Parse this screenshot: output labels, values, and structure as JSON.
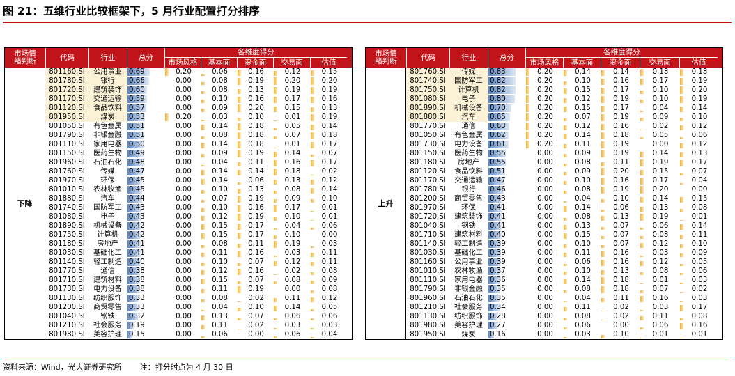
{
  "title": "图 21：五维行业比较框架下，5 月行业配置打分排序",
  "footer": {
    "source": "资料来源：Wind，光大证券研究所",
    "note": "注：打分时点为 4 月 30 日"
  },
  "headers": {
    "trend": "市场情绪判断",
    "code": "代码",
    "industry": "行业",
    "total": "总分",
    "dim_title": "各维度得分",
    "dims": [
      "市场风格",
      "基本面",
      "资金面",
      "交易面",
      "估值"
    ]
  },
  "colors": {
    "header_bg": "#c0141a",
    "highlight": "#fbf1d6",
    "bar_blue": "#5b86c3",
    "bar_gold": "#f0b233"
  },
  "panels": [
    {
      "trend": "下降",
      "rows": [
        {
          "code": "801160.SI",
          "ind": "公用事业",
          "total": "0.69",
          "d": [
            "0.20",
            "0.06",
            "0.16",
            "0.12",
            "0.15"
          ],
          "hl": true
        },
        {
          "code": "801780.SI",
          "ind": "银行",
          "total": "0.66",
          "d": [
            "0.00",
            "0.08",
            "0.19",
            "0.20",
            "0.20"
          ],
          "hl": true
        },
        {
          "code": "801720.SI",
          "ind": "建筑装饰",
          "total": "0.60",
          "d": [
            "0.00",
            "0.08",
            "0.13",
            "0.19",
            "0.19"
          ],
          "hl": true
        },
        {
          "code": "801170.SI",
          "ind": "交通运输",
          "total": "0.59",
          "d": [
            "0.00",
            "0.10",
            "0.16",
            "0.17",
            "0.16"
          ],
          "hl": true
        },
        {
          "code": "801120.SI",
          "ind": "食品饮料",
          "total": "0.57",
          "d": [
            "0.00",
            "0.09",
            "0.20",
            "0.15",
            "0.13"
          ],
          "hl": true
        },
        {
          "code": "801950.SI",
          "ind": "煤炭",
          "total": "0.53",
          "d": [
            "0.20",
            "0.03",
            "0.10",
            "0.01",
            "0.19"
          ],
          "hl": true
        },
        {
          "code": "801050.SI",
          "ind": "有色金属",
          "total": "0.51",
          "d": [
            "0.00",
            "0.14",
            "0.18",
            "0.05",
            "0.14"
          ],
          "hl": false
        },
        {
          "code": "801790.SI",
          "ind": "非银金融",
          "total": "0.51",
          "d": [
            "0.00",
            "0.08",
            "0.18",
            "0.07",
            "0.18"
          ],
          "hl": false
        },
        {
          "code": "801110.SI",
          "ind": "家用电器",
          "total": "0.50",
          "d": [
            "0.00",
            "0.14",
            "0.18",
            "0.01",
            "0.17"
          ],
          "hl": false
        },
        {
          "code": "801150.SI",
          "ind": "医药生物",
          "total": "0.49",
          "d": [
            "0.00",
            "0.09",
            "0.19",
            "0.14",
            "0.07"
          ],
          "hl": false
        },
        {
          "code": "801960.SI",
          "ind": "石油石化",
          "total": "0.48",
          "d": [
            "0.00",
            "0.04",
            "0.11",
            "0.16",
            "0.17"
          ],
          "hl": false
        },
        {
          "code": "801760.SI",
          "ind": "传媒",
          "total": "0.47",
          "d": [
            "0.00",
            "0.14",
            "0.14",
            "0.18",
            "0.02"
          ],
          "hl": false
        },
        {
          "code": "801970.SI",
          "ind": "环保",
          "total": "0.45",
          "d": [
            "0.00",
            "0.14",
            "0.06",
            "0.13",
            "0.12"
          ],
          "hl": false
        },
        {
          "code": "801010.SI",
          "ind": "农林牧渔",
          "total": "0.45",
          "d": [
            "0.00",
            "0.10",
            "0.13",
            "0.08",
            "0.14"
          ],
          "hl": false
        },
        {
          "code": "801880.SI",
          "ind": "汽车",
          "total": "0.44",
          "d": [
            "0.00",
            "0.07",
            "0.19",
            "0.09",
            "0.10"
          ],
          "hl": false
        },
        {
          "code": "801740.SI",
          "ind": "国防军工",
          "total": "0.43",
          "d": [
            "0.00",
            "0.10",
            "0.16",
            "0.17",
            "0.01"
          ],
          "hl": false
        },
        {
          "code": "801080.SI",
          "ind": "电子",
          "total": "0.43",
          "d": [
            "0.00",
            "0.12",
            "0.19",
            "0.10",
            "0.01"
          ],
          "hl": false
        },
        {
          "code": "801890.SI",
          "ind": "机械设备",
          "total": "0.42",
          "d": [
            "0.00",
            "0.15",
            "0.17",
            "0.04",
            "0.06"
          ],
          "hl": false
        },
        {
          "code": "801750.SI",
          "ind": "计算机",
          "total": "0.42",
          "d": [
            "0.00",
            "0.15",
            "0.17",
            "0.10",
            "0.00"
          ],
          "hl": false
        },
        {
          "code": "801180.SI",
          "ind": "房地产",
          "total": "0.41",
          "d": [
            "0.00",
            "0.08",
            "0.11",
            "0.19",
            "0.03"
          ],
          "hl": false
        },
        {
          "code": "801030.SI",
          "ind": "基础化工",
          "total": "0.41",
          "d": [
            "0.00",
            "0.11",
            "0.16",
            "0.03",
            "0.11"
          ],
          "hl": false
        },
        {
          "code": "801140.SI",
          "ind": "轻工制造",
          "total": "0.40",
          "d": [
            "0.00",
            "0.10",
            "0.07",
            "0.12",
            "0.11"
          ],
          "hl": false
        },
        {
          "code": "801770.SI",
          "ind": "通信",
          "total": "0.38",
          "d": [
            "0.00",
            "0.12",
            "0.16",
            "0.02",
            "0.08"
          ],
          "hl": false
        },
        {
          "code": "801710.SI",
          "ind": "建筑材料",
          "total": "0.38",
          "d": [
            "0.00",
            "0.15",
            "0.07",
            "0.08",
            "0.09"
          ],
          "hl": false
        },
        {
          "code": "801730.SI",
          "ind": "电力设备",
          "total": "0.38",
          "d": [
            "0.00",
            "0.11",
            "0.19",
            "0.00",
            "0.08"
          ],
          "hl": false
        },
        {
          "code": "801130.SI",
          "ind": "纺织服饰",
          "total": "0.33",
          "d": [
            "0.00",
            "0.08",
            "0.02",
            "0.11",
            "0.12"
          ],
          "hl": false
        },
        {
          "code": "801200.SI",
          "ind": "商贸零售",
          "total": "0.33",
          "d": [
            "0.00",
            "0.04",
            "0.10",
            "0.14",
            "0.05"
          ],
          "hl": false
        },
        {
          "code": "801040.SI",
          "ind": "钢铁",
          "total": "0.32",
          "d": [
            "0.00",
            "0.13",
            "0.07",
            "0.06",
            "0.06"
          ],
          "hl": false
        },
        {
          "code": "801210.SI",
          "ind": "社会服务",
          "total": "0.19",
          "d": [
            "0.00",
            "0.11",
            "0.02",
            "0.03",
            "0.03"
          ],
          "hl": false
        },
        {
          "code": "801980.SI",
          "ind": "美容护理",
          "total": "0.15",
          "d": [
            "0.00",
            "0.06",
            "0.00",
            "0.06",
            "0.04"
          ],
          "hl": false
        }
      ]
    },
    {
      "trend": "上升",
      "rows": [
        {
          "code": "801760.SI",
          "ind": "传媒",
          "total": "0.83",
          "d": [
            "0.20",
            "0.14",
            "0.14",
            "0.18",
            "0.18"
          ],
          "hl": true
        },
        {
          "code": "801740.SI",
          "ind": "国防军工",
          "total": "0.82",
          "d": [
            "0.20",
            "0.10",
            "0.16",
            "0.17",
            "0.19"
          ],
          "hl": true
        },
        {
          "code": "801750.SI",
          "ind": "计算机",
          "total": "0.82",
          "d": [
            "0.20",
            "0.15",
            "0.17",
            "0.10",
            "0.20"
          ],
          "hl": true
        },
        {
          "code": "801080.SI",
          "ind": "电子",
          "total": "0.80",
          "d": [
            "0.20",
            "0.12",
            "0.19",
            "0.10",
            "0.19"
          ],
          "hl": true
        },
        {
          "code": "801890.SI",
          "ind": "机械设备",
          "total": "0.70",
          "d": [
            "0.20",
            "0.15",
            "0.17",
            "0.04",
            "0.14"
          ],
          "hl": true
        },
        {
          "code": "801880.SI",
          "ind": "汽车",
          "total": "0.65",
          "d": [
            "0.20",
            "0.07",
            "0.19",
            "0.09",
            "0.10"
          ],
          "hl": true
        },
        {
          "code": "801770.SI",
          "ind": "通信",
          "total": "0.63",
          "d": [
            "0.20",
            "0.12",
            "0.16",
            "0.02",
            "0.12"
          ],
          "hl": false
        },
        {
          "code": "801050.SI",
          "ind": "有色金属",
          "total": "0.62",
          "d": [
            "0.20",
            "0.14",
            "0.18",
            "0.05",
            "0.06"
          ],
          "hl": false
        },
        {
          "code": "801730.SI",
          "ind": "电力设备",
          "total": "0.61",
          "d": [
            "0.20",
            "0.11",
            "0.19",
            "0.00",
            "0.12"
          ],
          "hl": false
        },
        {
          "code": "801150.SI",
          "ind": "医药生物",
          "total": "0.55",
          "d": [
            "0.00",
            "0.09",
            "0.19",
            "0.14",
            "0.13"
          ],
          "hl": false
        },
        {
          "code": "801180.SI",
          "ind": "房地产",
          "total": "0.55",
          "d": [
            "0.00",
            "0.08",
            "0.11",
            "0.19",
            "0.17"
          ],
          "hl": false
        },
        {
          "code": "801120.SI",
          "ind": "食品饮料",
          "total": "0.51",
          "d": [
            "0.00",
            "0.09",
            "0.20",
            "0.15",
            "0.07"
          ],
          "hl": false
        },
        {
          "code": "801170.SI",
          "ind": "交通运输",
          "total": "0.47",
          "d": [
            "0.00",
            "0.10",
            "0.16",
            "0.17",
            "0.04"
          ],
          "hl": false
        },
        {
          "code": "801780.SI",
          "ind": "银行",
          "total": "0.46",
          "d": [
            "0.00",
            "0.08",
            "0.19",
            "0.20",
            "0.00"
          ],
          "hl": false
        },
        {
          "code": "801200.SI",
          "ind": "商贸零售",
          "total": "0.43",
          "d": [
            "0.00",
            "0.04",
            "0.10",
            "0.14",
            "0.15"
          ],
          "hl": false
        },
        {
          "code": "801970.SI",
          "ind": "环保",
          "total": "0.41",
          "d": [
            "0.00",
            "0.14",
            "0.06",
            "0.13",
            "0.08"
          ],
          "hl": false
        },
        {
          "code": "801720.SI",
          "ind": "建筑装饰",
          "total": "0.41",
          "d": [
            "0.00",
            "0.08",
            "0.13",
            "0.19",
            "0.01"
          ],
          "hl": false
        },
        {
          "code": "801040.SI",
          "ind": "钢铁",
          "total": "0.41",
          "d": [
            "0.00",
            "0.13",
            "0.07",
            "0.06",
            "0.14"
          ],
          "hl": false
        },
        {
          "code": "801710.SI",
          "ind": "建筑材料",
          "total": "0.40",
          "d": [
            "0.00",
            "0.15",
            "0.07",
            "0.08",
            "0.11"
          ],
          "hl": false
        },
        {
          "code": "801140.SI",
          "ind": "轻工制造",
          "total": "0.39",
          "d": [
            "0.00",
            "0.10",
            "0.07",
            "0.12",
            "0.10"
          ],
          "hl": false
        },
        {
          "code": "801030.SI",
          "ind": "基础化工",
          "total": "0.39",
          "d": [
            "0.00",
            "0.11",
            "0.16",
            "0.03",
            "0.09"
          ],
          "hl": false
        },
        {
          "code": "801160.SI",
          "ind": "公用事业",
          "total": "0.39",
          "d": [
            "0.00",
            "0.06",
            "0.16",
            "0.12",
            "0.05"
          ],
          "hl": false
        },
        {
          "code": "801010.SI",
          "ind": "农林牧渔",
          "total": "0.37",
          "d": [
            "0.00",
            "0.10",
            "0.13",
            "0.08",
            "0.06"
          ],
          "hl": false
        },
        {
          "code": "801110.SI",
          "ind": "家用电器",
          "total": "0.36",
          "d": [
            "0.00",
            "0.14",
            "0.18",
            "0.01",
            "0.03"
          ],
          "hl": false
        },
        {
          "code": "801790.SI",
          "ind": "非银金融",
          "total": "0.35",
          "d": [
            "0.00",
            "0.08",
            "0.18",
            "0.07",
            "0.02"
          ],
          "hl": false
        },
        {
          "code": "801960.SI",
          "ind": "石油石化",
          "total": "0.35",
          "d": [
            "0.00",
            "0.04",
            "0.11",
            "0.16",
            "0.03"
          ],
          "hl": false
        },
        {
          "code": "801210.SI",
          "ind": "社会服务",
          "total": "0.34",
          "d": [
            "0.00",
            "0.11",
            "0.02",
            "0.03",
            "0.17"
          ],
          "hl": false
        },
        {
          "code": "801130.SI",
          "ind": "纺织服饰",
          "total": "0.28",
          "d": [
            "0.00",
            "0.08",
            "0.02",
            "0.11",
            "0.08"
          ],
          "hl": false
        },
        {
          "code": "801980.SI",
          "ind": "美容护理",
          "total": "0.27",
          "d": [
            "0.00",
            "0.06",
            "0.00",
            "0.06",
            "0.16"
          ],
          "hl": false
        },
        {
          "code": "801950.SI",
          "ind": "煤炭",
          "total": "0.16",
          "d": [
            "0.00",
            "0.03",
            "0.10",
            "0.01",
            "0.01"
          ],
          "hl": false
        }
      ]
    }
  ]
}
